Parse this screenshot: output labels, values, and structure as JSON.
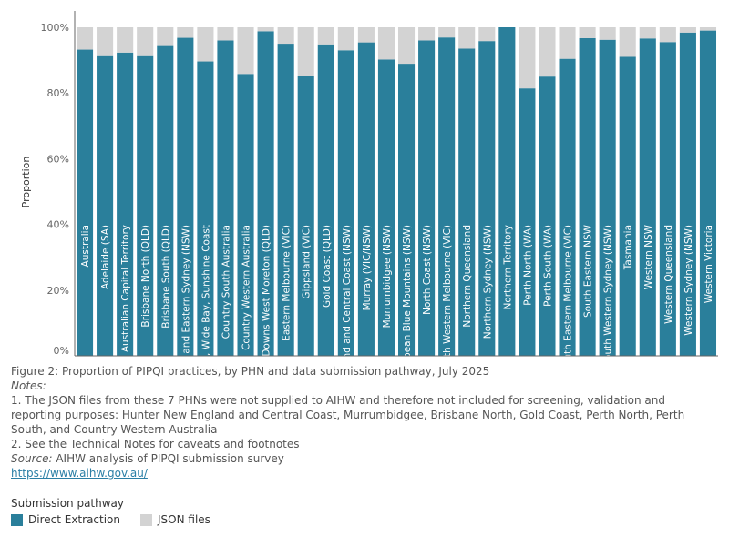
{
  "chart_data": {
    "type": "bar",
    "stacked": true,
    "ylabel": "Proportion",
    "ylim": [
      0,
      100
    ],
    "yticks": [
      "0%",
      "20%",
      "40%",
      "60%",
      "80%",
      "100%"
    ],
    "ytick_values": [
      0,
      20,
      40,
      60,
      80,
      100
    ],
    "categories": [
      "Australia",
      "Adelaide (SA)",
      "Australian Capital Territory",
      "Brisbane North (QLD)",
      "Brisbane South (QLD)",
      "Central and Eastern Sydney (NSW)",
      "Central Queensland, Wide Bay, Sunshine Coast",
      "Country South Australia",
      "Country Western Australia",
      "Darling Downs West Moreton (QLD)",
      "Eastern Melbourne (VIC)",
      "Gippsland (VIC)",
      "Gold Coast (QLD)",
      "Hunter New England and Central Coast (NSW)",
      "Murray (VIC/NSW)",
      "Murrumbidgee (NSW)",
      "Nepean Blue Mountains (NSW)",
      "North Coast (NSW)",
      "North Western Melbourne (VIC)",
      "Northern Queensland",
      "Northern Sydney (NSW)",
      "Northern Territory",
      "Perth North (WA)",
      "Perth South (WA)",
      "South Eastern Melbourne (VIC)",
      "South Eastern NSW",
      "South Western Sydney (NSW)",
      "Tasmania",
      "Western NSW",
      "Western Queensland",
      "Western Sydney (NSW)",
      "Western Victoria"
    ],
    "series": [
      {
        "name": "Direct Extraction",
        "color": "#2a7f9b",
        "values": [
          93.2,
          91.5,
          92.3,
          91.5,
          94.3,
          96.8,
          89.6,
          96.0,
          85.8,
          98.8,
          95.0,
          85.2,
          94.8,
          93.0,
          95.4,
          90.2,
          88.9,
          96.0,
          96.9,
          93.5,
          95.8,
          100,
          81.4,
          85.0,
          90.4,
          96.7,
          96.2,
          91.0,
          96.6,
          95.5,
          98.4,
          99.0
        ]
      },
      {
        "name": "JSON files",
        "color": "#d3d3d3",
        "values": [
          6.8,
          8.5,
          7.7,
          8.5,
          5.7,
          3.2,
          10.4,
          4.0,
          14.2,
          1.2,
          5.0,
          14.8,
          5.2,
          7.0,
          4.6,
          9.8,
          11.1,
          4.0,
          3.1,
          6.5,
          4.2,
          0,
          18.6,
          15.0,
          9.6,
          3.3,
          3.8,
          9.0,
          3.4,
          4.5,
          1.6,
          1.0
        ]
      }
    ],
    "legend_position": "bottom-left",
    "grid": false
  },
  "caption": {
    "figure": "Figure 2: Proportion of PIPQI practices, by PHN and data submission pathway, July 2025",
    "notes_label": "Notes:",
    "note1": "1. The JSON files from these 7 PHNs were not supplied to AIHW and therefore not included for screening, validation and reporting purposes: Hunter New England and Central Coast, Murrumbidgee, Brisbane North, Gold Coast, Perth North, Perth South, and Country Western Australia",
    "note2": "2. See the Technical Notes for caveats and footnotes",
    "source_label": "Source:",
    "source_text": " AIHW analysis of PIPQI submission survey",
    "link": "https://www.aihw.gov.au/"
  },
  "legend": {
    "title": "Submission pathway",
    "items": [
      {
        "label": "Direct Extraction",
        "color": "#2a7f9b"
      },
      {
        "label": "JSON files",
        "color": "#d3d3d3"
      }
    ]
  }
}
